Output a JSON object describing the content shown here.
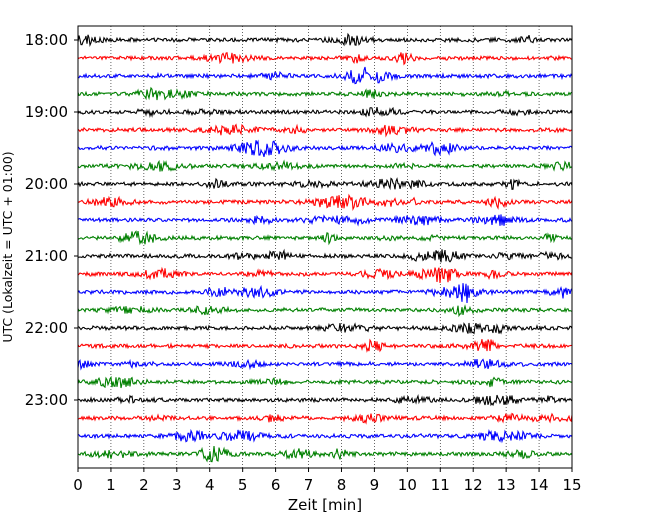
{
  "chart_data": {
    "type": "line",
    "title": "",
    "xlabel": "Zeit  [min]",
    "ylabel": "UTC (Lokalzeit = UTC + 01:00)",
    "xlim": [
      0,
      15
    ],
    "x_ticks": [
      "0",
      "1",
      "2",
      "3",
      "4",
      "5",
      "6",
      "7",
      "8",
      "9",
      "10",
      "11",
      "12",
      "13",
      "14",
      "15"
    ],
    "y_tick_labels": [
      "18:00",
      "19:00",
      "20:00",
      "21:00",
      "22:00",
      "23:00"
    ],
    "grid": "vertical dotted lines at each minute",
    "trace_interval_minutes": 15,
    "start_time": "18:00",
    "trace_count": 24,
    "trace_colors": [
      "#000000",
      "#ff0000",
      "#0000ff",
      "#008000"
    ]
  }
}
